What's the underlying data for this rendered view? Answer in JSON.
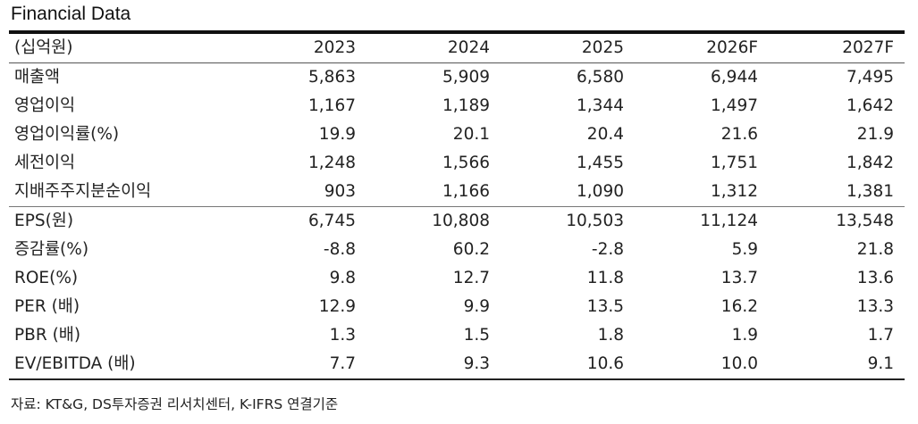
{
  "title": "Financial Data",
  "unit_label": "(십억원)",
  "years": [
    "2023",
    "2024",
    "2025",
    "2026F",
    "2027F"
  ],
  "rows": [
    {
      "label": "매출액",
      "values": [
        "5,863",
        "5,909",
        "6,580",
        "6,944",
        "7,495"
      ]
    },
    {
      "label": "영업이익",
      "values": [
        "1,167",
        "1,189",
        "1,344",
        "1,497",
        "1,642"
      ]
    },
    {
      "label": "영업이익률(%)",
      "values": [
        "19.9",
        "20.1",
        "20.4",
        "21.6",
        "21.9"
      ]
    },
    {
      "label": "세전이익",
      "values": [
        "1,248",
        "1,566",
        "1,455",
        "1,751",
        "1,842"
      ]
    },
    {
      "label": "지배주주지분순이익",
      "values": [
        "903",
        "1,166",
        "1,090",
        "1,312",
        "1,381"
      ]
    },
    {
      "label": "EPS(원)",
      "values": [
        "6,745",
        "10,808",
        "10,503",
        "11,124",
        "13,548"
      ]
    },
    {
      "label": "증감률(%)",
      "values": [
        "-8.8",
        "60.2",
        "-2.8",
        "5.9",
        "21.8"
      ]
    },
    {
      "label": "ROE(%)",
      "values": [
        "9.8",
        "12.7",
        "11.8",
        "13.7",
        "13.6"
      ]
    },
    {
      "label": "PER (배)",
      "values": [
        "12.9",
        "9.9",
        "13.5",
        "16.2",
        "13.3"
      ]
    },
    {
      "label": "PBR (배)",
      "values": [
        "1.3",
        "1.5",
        "1.8",
        "1.9",
        "1.7"
      ]
    },
    {
      "label": "EV/EBITDA (배)",
      "values": [
        "7.7",
        "9.3",
        "10.6",
        "10.0",
        "9.1"
      ]
    }
  ],
  "source": "자료: KT&G, DS투자증권 리서치센터, K-IFRS 연결기준"
}
